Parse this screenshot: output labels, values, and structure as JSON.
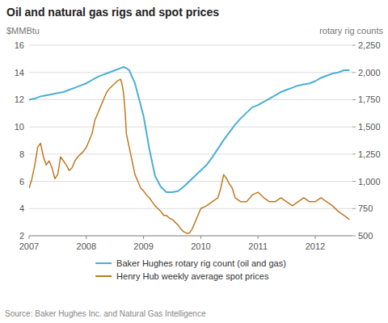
{
  "chart_data": {
    "type": "line",
    "title": "Oil and natural gas rigs and spot prices",
    "ylabel": "$MMBtu",
    "y2label": "rotary rig counts",
    "annotations": [
      "Source: Baker Hughes Inc. and Natural Gas Intelligence"
    ],
    "xlim": [
      2007.0,
      2012.65
    ],
    "xticks": [
      2007,
      2008,
      2009,
      2010,
      2011,
      2012
    ],
    "ylim": [
      2,
      16
    ],
    "yticks": [
      2,
      4,
      6,
      8,
      10,
      12,
      14,
      16
    ],
    "y2lim": [
      500,
      2250
    ],
    "y2ticks": [
      500,
      750,
      {
        "value": 1000,
        "label": "1,000"
      },
      {
        "value": 1250,
        "label": "1,250"
      },
      {
        "value": 1500,
        "label": "1,500"
      },
      {
        "value": 1750,
        "label": "1,750"
      },
      {
        "value": 2000,
        "label": "2,000"
      },
      {
        "value": 2250,
        "label": "2,250"
      }
    ],
    "grid": true,
    "legend": "bottom",
    "series": [
      {
        "name": "Baker Hughes rotary rig count (oil and gas)",
        "color": "#4bafd4",
        "axis": "y2",
        "x": [
          2007.0,
          2007.1,
          2007.2,
          2007.3,
          2007.4,
          2007.5,
          2007.6,
          2007.7,
          2007.8,
          2007.9,
          2008.0,
          2008.1,
          2008.2,
          2008.3,
          2008.4,
          2008.5,
          2008.6,
          2008.65,
          2008.7,
          2008.75,
          2008.85,
          2008.9,
          2009.0,
          2009.1,
          2009.2,
          2009.3,
          2009.4,
          2009.5,
          2009.6,
          2009.7,
          2009.8,
          2009.9,
          2010.0,
          2010.1,
          2010.2,
          2010.3,
          2010.4,
          2010.5,
          2010.6,
          2010.7,
          2010.8,
          2010.9,
          2011.0,
          2011.1,
          2011.2,
          2011.3,
          2011.4,
          2011.5,
          2011.6,
          2011.7,
          2011.8,
          2011.9,
          2012.0,
          2012.1,
          2012.2,
          2012.3,
          2012.4,
          2012.5,
          2012.6
        ],
        "values": [
          1750,
          1760,
          1780,
          1790,
          1800,
          1810,
          1820,
          1840,
          1860,
          1880,
          1900,
          1930,
          1960,
          1980,
          2000,
          2020,
          2040,
          2050,
          2040,
          2020,
          1900,
          1800,
          1600,
          1300,
          1050,
          950,
          900,
          900,
          910,
          950,
          1000,
          1050,
          1100,
          1150,
          1220,
          1300,
          1380,
          1450,
          1520,
          1580,
          1630,
          1680,
          1700,
          1730,
          1760,
          1790,
          1820,
          1840,
          1860,
          1880,
          1890,
          1900,
          1920,
          1950,
          1970,
          1990,
          2000,
          2020,
          2020
        ]
      },
      {
        "name": "Henry Hub weekly average spot prices",
        "color": "#c07820",
        "axis": "y",
        "x": [
          2007.0,
          2007.05,
          2007.1,
          2007.15,
          2007.2,
          2007.25,
          2007.3,
          2007.35,
          2007.4,
          2007.45,
          2007.5,
          2007.55,
          2007.6,
          2007.65,
          2007.7,
          2007.75,
          2007.8,
          2007.85,
          2007.9,
          2007.95,
          2008.0,
          2008.05,
          2008.1,
          2008.15,
          2008.2,
          2008.25,
          2008.3,
          2008.35,
          2008.4,
          2008.45,
          2008.5,
          2008.55,
          2008.6,
          2008.62,
          2008.65,
          2008.68,
          2008.7,
          2008.75,
          2008.8,
          2008.85,
          2008.9,
          2008.95,
          2009.0,
          2009.05,
          2009.1,
          2009.15,
          2009.2,
          2009.25,
          2009.3,
          2009.35,
          2009.4,
          2009.45,
          2009.5,
          2009.55,
          2009.6,
          2009.65,
          2009.7,
          2009.75,
          2009.8,
          2009.85,
          2009.9,
          2009.95,
          2010.0,
          2010.1,
          2010.2,
          2010.3,
          2010.35,
          2010.4,
          2010.45,
          2010.5,
          2010.55,
          2010.6,
          2010.7,
          2010.8,
          2010.9,
          2011.0,
          2011.1,
          2011.2,
          2011.3,
          2011.4,
          2011.5,
          2011.6,
          2011.7,
          2011.8,
          2011.9,
          2012.0,
          2012.1,
          2012.2,
          2012.3,
          2012.4,
          2012.5,
          2012.6
        ],
        "values": [
          5.5,
          6.2,
          7.2,
          8.5,
          8.8,
          7.8,
          7.2,
          7.5,
          7.0,
          6.2,
          6.5,
          7.8,
          7.5,
          7.2,
          6.8,
          7.0,
          7.5,
          7.8,
          8.0,
          8.2,
          8.5,
          9.0,
          9.5,
          10.5,
          11.0,
          11.5,
          12.0,
          12.5,
          12.8,
          13.0,
          13.2,
          13.4,
          13.5,
          13.2,
          12.5,
          11.0,
          9.5,
          8.5,
          7.5,
          6.5,
          6.0,
          5.5,
          5.3,
          5.0,
          4.8,
          4.5,
          4.2,
          4.0,
          3.8,
          3.5,
          3.5,
          3.3,
          3.2,
          3.0,
          2.8,
          2.5,
          2.3,
          2.2,
          2.2,
          2.5,
          3.0,
          3.5,
          4.0,
          4.2,
          4.5,
          4.8,
          5.5,
          6.5,
          6.2,
          5.8,
          5.5,
          4.8,
          4.5,
          4.5,
          5.0,
          5.2,
          4.8,
          4.5,
          4.5,
          4.8,
          4.5,
          4.2,
          4.5,
          4.8,
          4.5,
          4.5,
          4.8,
          4.5,
          4.2,
          3.8,
          3.5,
          3.2
        ]
      }
    ]
  }
}
